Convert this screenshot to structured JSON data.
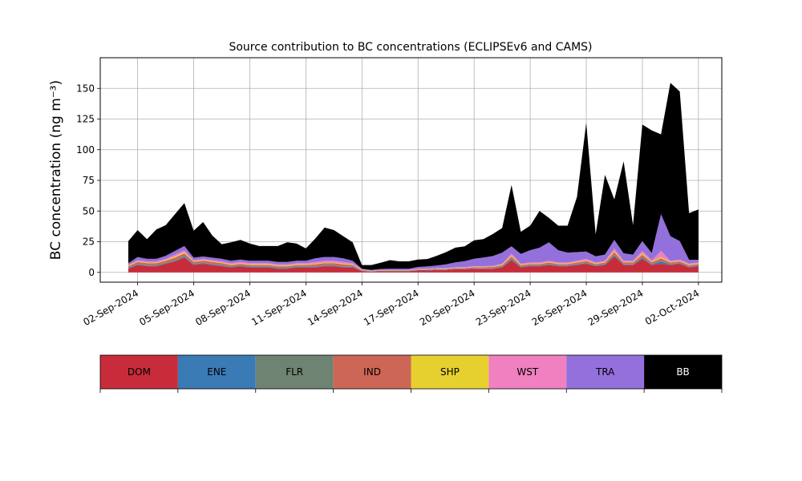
{
  "chart_data": {
    "type": "area",
    "stacked": true,
    "title": "Source contribution to BC concentrations (ECLIPSEv6 and CAMS)",
    "ylabel": "BC concentration (ng m⁻³)",
    "xlabel": "",
    "ylim": [
      -8,
      175
    ],
    "xlim": [
      "2024-08-31T00:00",
      "2024-10-03T06:00"
    ],
    "yticks": [
      0,
      25,
      50,
      75,
      100,
      125,
      150
    ],
    "xticks": [
      "02-Sep-2024",
      "05-Sep-2024",
      "08-Sep-2024",
      "11-Sep-2024",
      "14-Sep-2024",
      "17-Sep-2024",
      "20-Sep-2024",
      "23-Sep-2024",
      "26-Sep-2024",
      "29-Sep-2024",
      "02-Oct-2024"
    ],
    "grid": true,
    "legend_position": "below",
    "x": [
      "2024-09-01T12:00",
      "2024-09-02T00:00",
      "2024-09-02T12:00",
      "2024-09-03T00:00",
      "2024-09-03T12:00",
      "2024-09-04T00:00",
      "2024-09-04T12:00",
      "2024-09-05T00:00",
      "2024-09-05T12:00",
      "2024-09-06T00:00",
      "2024-09-06T12:00",
      "2024-09-07T00:00",
      "2024-09-07T12:00",
      "2024-09-08T00:00",
      "2024-09-08T12:00",
      "2024-09-09T00:00",
      "2024-09-09T12:00",
      "2024-09-10T00:00",
      "2024-09-10T12:00",
      "2024-09-11T00:00",
      "2024-09-11T12:00",
      "2024-09-12T00:00",
      "2024-09-12T12:00",
      "2024-09-13T00:00",
      "2024-09-13T12:00",
      "2024-09-14T00:00",
      "2024-09-14T12:00",
      "2024-09-15T00:00",
      "2024-09-15T12:00",
      "2024-09-16T00:00",
      "2024-09-16T12:00",
      "2024-09-17T00:00",
      "2024-09-17T12:00",
      "2024-09-18T00:00",
      "2024-09-18T12:00",
      "2024-09-19T00:00",
      "2024-09-19T12:00",
      "2024-09-20T00:00",
      "2024-09-20T12:00",
      "2024-09-21T00:00",
      "2024-09-21T12:00",
      "2024-09-22T00:00",
      "2024-09-22T12:00",
      "2024-09-23T00:00",
      "2024-09-23T12:00",
      "2024-09-24T00:00",
      "2024-09-24T12:00",
      "2024-09-25T00:00",
      "2024-09-25T12:00",
      "2024-09-26T00:00",
      "2024-09-26T12:00",
      "2024-09-27T00:00",
      "2024-09-27T12:00",
      "2024-09-28T00:00",
      "2024-09-28T12:00",
      "2024-09-29T00:00",
      "2024-09-29T12:00",
      "2024-09-30T00:00",
      "2024-09-30T12:00",
      "2024-10-01T00:00",
      "2024-10-01T12:00",
      "2024-10-02T00:00"
    ],
    "series": [
      {
        "name": "DOM",
        "color": "#c82c3a",
        "values": [
          3,
          6,
          5,
          5,
          7,
          9,
          12,
          6,
          7,
          6,
          5,
          4,
          5,
          4,
          4,
          4,
          3,
          3,
          4,
          4,
          4,
          5,
          5,
          4,
          4,
          1,
          0.5,
          1,
          1,
          1,
          1,
          1.5,
          1.5,
          2,
          2,
          2.5,
          2.5,
          3,
          3,
          3,
          4,
          10,
          4,
          5,
          5,
          6,
          5,
          5,
          6,
          7,
          5,
          6,
          13,
          6,
          6,
          11,
          6,
          7,
          6,
          7,
          4,
          5
        ]
      },
      {
        "name": "ENE",
        "color": "#3a7ab5",
        "values": [
          0.5,
          0.5,
          0.5,
          0.5,
          0.5,
          0.5,
          1,
          0.5,
          0.5,
          0.5,
          0.5,
          0.5,
          0.5,
          0.5,
          0.5,
          0.5,
          0.5,
          0.5,
          0.5,
          0.5,
          0.5,
          0.5,
          0.5,
          0.5,
          0.5,
          0.2,
          0.2,
          0.2,
          0.2,
          0.2,
          0.2,
          0.3,
          0.3,
          0.3,
          0.3,
          0.3,
          0.3,
          0.3,
          0.3,
          0.3,
          0.5,
          1,
          0.5,
          0.5,
          0.5,
          0.5,
          0.5,
          0.5,
          0.5,
          0.5,
          0.5,
          0.5,
          1,
          0.5,
          0.5,
          1,
          0.5,
          2,
          0.5,
          0.5,
          0.5,
          0.5
        ]
      },
      {
        "name": "FLR",
        "color": "#6e8371",
        "values": [
          0.5,
          0.5,
          0.5,
          0.5,
          0.5,
          0.5,
          0.5,
          0.5,
          0.5,
          0.5,
          0.5,
          0.5,
          0.5,
          0.5,
          0.5,
          0.5,
          0.5,
          0.5,
          0.5,
          0.5,
          0.5,
          0.5,
          0.5,
          0.5,
          0.5,
          0.2,
          0.2,
          0.2,
          0.2,
          0.2,
          0.2,
          0.2,
          0.2,
          0.2,
          0.2,
          0.2,
          0.2,
          0.2,
          0.2,
          0.2,
          0.3,
          0.5,
          0.3,
          0.3,
          0.3,
          0.3,
          0.3,
          0.3,
          0.3,
          0.3,
          0.3,
          0.3,
          0.5,
          0.3,
          0.3,
          0.5,
          0.3,
          0.5,
          0.3,
          0.3,
          0.3,
          0.3
        ]
      },
      {
        "name": "IND",
        "color": "#cc6656",
        "values": [
          1,
          1.5,
          1.5,
          1.5,
          1.5,
          2,
          2,
          1.5,
          1.5,
          1.5,
          1.5,
          1,
          1,
          1,
          1,
          1,
          1,
          1,
          1,
          1,
          1.5,
          1.5,
          1.5,
          1.5,
          1,
          0.5,
          0.2,
          0.3,
          0.3,
          0.3,
          0.3,
          0.4,
          0.4,
          0.5,
          0.5,
          0.6,
          0.6,
          0.8,
          0.8,
          1,
          1,
          1.5,
          1,
          1,
          1,
          1.2,
          1,
          1,
          1.2,
          1.5,
          1,
          1.2,
          2,
          1.2,
          1.2,
          2,
          1.5,
          2,
          1.2,
          1.2,
          1,
          1
        ]
      },
      {
        "name": "SHP",
        "color": "#e6d030",
        "values": [
          0.5,
          0.5,
          0.5,
          0.5,
          0.5,
          1,
          1,
          0.5,
          0.5,
          0.5,
          0.5,
          0.5,
          0.5,
          0.5,
          0.5,
          0.5,
          0.5,
          0.5,
          0.5,
          0.5,
          0.5,
          0.5,
          0.5,
          0.5,
          0.5,
          0.2,
          0.1,
          0.1,
          0.1,
          0.1,
          0.1,
          0.2,
          0.2,
          0.2,
          0.2,
          0.2,
          0.2,
          0.3,
          0.3,
          0.3,
          0.5,
          0.8,
          0.5,
          0.5,
          0.5,
          0.5,
          0.5,
          0.5,
          0.5,
          0.5,
          0.5,
          0.5,
          1,
          0.5,
          0.5,
          1,
          0.5,
          1,
          0.5,
          0.5,
          0.5,
          0.5
        ]
      },
      {
        "name": "WST",
        "color": "#f080c0",
        "values": [
          0.5,
          1,
          1,
          1,
          1,
          1.5,
          1.5,
          1,
          1,
          1,
          1,
          1,
          1,
          1,
          1,
          1,
          1,
          1,
          1,
          1,
          1.5,
          1.5,
          1.5,
          1.5,
          1,
          0.3,
          0.2,
          0.2,
          0.2,
          0.2,
          0.2,
          0.3,
          0.3,
          0.3,
          0.3,
          0.4,
          0.4,
          0.5,
          0.5,
          0.5,
          0.8,
          1.5,
          0.8,
          0.8,
          0.8,
          1,
          0.8,
          0.8,
          1,
          1.2,
          0.8,
          1,
          2,
          1,
          1,
          2,
          1,
          5,
          1,
          1,
          1,
          1
        ]
      },
      {
        "name": "TRA",
        "color": "#9370db",
        "values": [
          1.5,
          2.5,
          2,
          2,
          2.5,
          3,
          3.5,
          2,
          2,
          2,
          2,
          2,
          2,
          2,
          2,
          2,
          2,
          2,
          2,
          2,
          3,
          3,
          3,
          3,
          2,
          0.6,
          0.6,
          0.8,
          1,
          1,
          1,
          1.5,
          2,
          2,
          3,
          4,
          5,
          6,
          7,
          8,
          9,
          6,
          8,
          10,
          12,
          15,
          10,
          8,
          7,
          6,
          5,
          5,
          7,
          6,
          5,
          8,
          6,
          30,
          20,
          15,
          3,
          2
        ]
      },
      {
        "name": "BB",
        "color": "#000000",
        "values": [
          18,
          22,
          16,
          24,
          25,
          30,
          35,
          22,
          28,
          18,
          12,
          15,
          16,
          14,
          12,
          12,
          13,
          16,
          14,
          10,
          16,
          24,
          22,
          18,
          15,
          3,
          4,
          5,
          7,
          6,
          6,
          6,
          6,
          8,
          10,
          12,
          12,
          15,
          15,
          18,
          20,
          50,
          18,
          20,
          30,
          20,
          20,
          22,
          45,
          105,
          18,
          65,
          33,
          75,
          24,
          95,
          100,
          65,
          125,
          122,
          38,
          41
        ]
      }
    ]
  },
  "legend": {
    "items": [
      {
        "label": "DOM",
        "color": "#c82c3a",
        "text_color": "#000000"
      },
      {
        "label": "ENE",
        "color": "#3a7ab5",
        "text_color": "#000000"
      },
      {
        "label": "FLR",
        "color": "#6e8371",
        "text_color": "#000000"
      },
      {
        "label": "IND",
        "color": "#cc6656",
        "text_color": "#000000"
      },
      {
        "label": "SHP",
        "color": "#e6d030",
        "text_color": "#000000"
      },
      {
        "label": "WST",
        "color": "#f080c0",
        "text_color": "#000000"
      },
      {
        "label": "TRA",
        "color": "#9370db",
        "text_color": "#000000"
      },
      {
        "label": "BB",
        "color": "#000000",
        "text_color": "#ffffff"
      }
    ]
  }
}
